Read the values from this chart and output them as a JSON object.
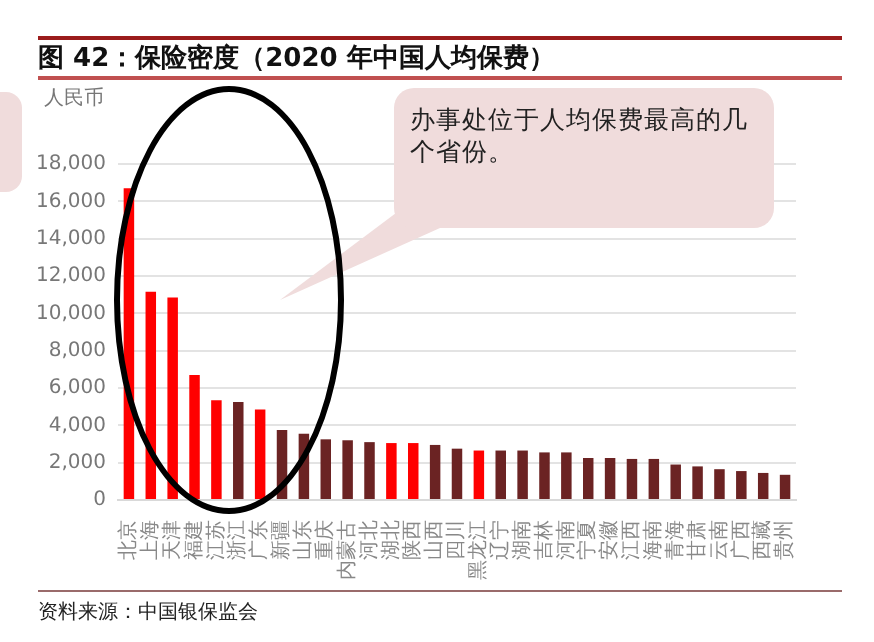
{
  "chart_data": {
    "type": "bar",
    "title": "图 42：保险密度（2020 年中国人均保费）",
    "ylabel": "人民币",
    "categories": [
      "北京",
      "上海",
      "天津",
      "福建",
      "江苏",
      "浙江",
      "广东",
      "新疆",
      "山东",
      "重庆",
      "内蒙古",
      "河北",
      "湖北",
      "陕西",
      "山西",
      "四川",
      "黑龙江",
      "辽宁",
      "湖南",
      "吉林",
      "河南",
      "宁夏",
      "安徽",
      "江西",
      "海南",
      "青海",
      "甘肃",
      "云南",
      "广西",
      "西藏",
      "贵州"
    ],
    "values": [
      16700,
      11150,
      10850,
      6700,
      5350,
      5250,
      4850,
      3750,
      3550,
      3250,
      3200,
      3100,
      3050,
      3050,
      2950,
      2750,
      2650,
      2650,
      2650,
      2550,
      2550,
      2250,
      2250,
      2200,
      2200,
      1900,
      1800,
      1650,
      1550,
      1450,
      1350
    ],
    "colors": [
      "#ff0000",
      "#ff0000",
      "#ff0000",
      "#ff0000",
      "#ff0000",
      "#6b2323",
      "#ff0000",
      "#6b2323",
      "#6b2323",
      "#6b2323",
      "#6b2323",
      "#6b2323",
      "#ff0000",
      "#ff0000",
      "#6b2323",
      "#6b2323",
      "#ff0000",
      "#6b2323",
      "#6b2323",
      "#6b2323",
      "#6b2323",
      "#6b2323",
      "#6b2323",
      "#6b2323",
      "#6b2323",
      "#6b2323",
      "#6b2323",
      "#6b2323",
      "#6b2323",
      "#6b2323",
      "#6b2323"
    ],
    "ylim": [
      0,
      18000
    ],
    "yticks": [
      0,
      {
        "value": 2000,
        "label": "2,000"
      },
      {
        "value": 4000,
        "label": "4,000"
      },
      {
        "value": 6000,
        "label": "6,000"
      },
      {
        "value": 8000,
        "label": "8,000"
      },
      {
        "value": 10000,
        "label": "10,000"
      },
      {
        "value": 12000,
        "label": "12,000"
      },
      {
        "value": 14000,
        "label": "14,000"
      },
      {
        "value": 16000,
        "label": "16,000"
      },
      {
        "value": 18000,
        "label": "18,000"
      }
    ],
    "grid": "y",
    "legend": false,
    "annotations": [
      "办事处位于人均保费最高的几个省份。",
      "资料来源：中国银保监会"
    ]
  }
}
